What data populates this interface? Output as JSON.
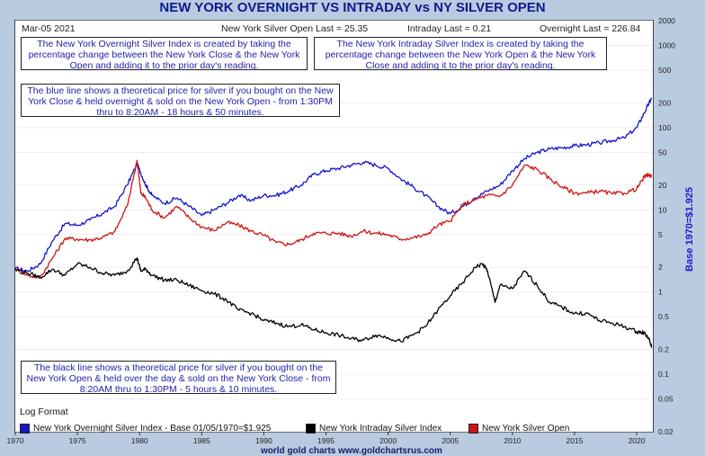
{
  "title": "NEW YORK OVERNIGHT VS INTRADAY vs NY SILVER OPEN",
  "header": {
    "date": "Mar-05  2021",
    "open_last": "New York Silver Open Last = 25.35",
    "intraday_last": "Intraday Last = 0.21",
    "overnight_last": "Overnight Last = 226.84"
  },
  "notes": {
    "overnight": "The New York Overnight Silver Index is created by taking the percentage change between the New York Close & the New York Open and adding it to the prior day's reading.",
    "intraday": "The New York Intraday Silver Index is created by taking the percentage change between the New York Open & the New York Close and adding it to the prior day's reading.",
    "blue_line": "The blue line shows a theoretical price for silver if you bought on the New York Close & held overnight & sold on the New York Open - from 1:30PM thru to 8:20AM - 18 hours & 50 minutes.",
    "black_line": "The black line shows a theoretical price for silver if you bought on the New York Open & held over the day & sold on the New York Close - from 8:20AM thru to 1:30PM - 5 hours & 10 minutes."
  },
  "log_format": "Log Format",
  "right_axis_label": "Base 1970=$1.925",
  "footer": "world gold charts www.goldchartsrus.com",
  "legend": [
    {
      "label": "New York Overnight Silver Index - Base 01/05/1970=$1.925",
      "color": "#1515c8"
    },
    {
      "label": "New York Intraday Silver Index",
      "color": "#000000"
    },
    {
      "label": "New York Silver Open",
      "color": "#d01515"
    }
  ],
  "chart_data": {
    "type": "line",
    "y_scale": "log",
    "xlim": [
      1970,
      2021.3
    ],
    "ylim": [
      0.02,
      2000
    ],
    "x_ticks": [
      "1970",
      "1975",
      "1980",
      "1985",
      "1990",
      "1995",
      "2000",
      "2005",
      "2010",
      "2015",
      "2020"
    ],
    "y_ticks": [
      "2000",
      "1000",
      "500",
      "200",
      "100",
      "50",
      "20",
      "10",
      "5",
      "2",
      "1",
      "0.5",
      "0.2",
      "0.1",
      "0.05",
      "0.02"
    ],
    "series": [
      {
        "name": "New York Overnight Silver Index - Base 01/05/1970=$1.925",
        "color": "#1515c8",
        "x": [
          1970,
          1971,
          1972,
          1973,
          1974,
          1975,
          1976,
          1977,
          1978,
          1979,
          1979.8,
          1980.1,
          1980.5,
          1981,
          1982,
          1983,
          1984,
          1985,
          1986,
          1987,
          1988,
          1989,
          1990,
          1991,
          1992,
          1993,
          1994,
          1995,
          1996,
          1997,
          1998,
          1999,
          2000,
          2001,
          2002,
          2003,
          2004,
          2005,
          2006,
          2007,
          2008,
          2009,
          2010,
          2011,
          2012,
          2013,
          2014,
          2015,
          2016,
          2017,
          2018,
          2019,
          2020,
          2020.6,
          2021,
          2021.2
        ],
        "y": [
          1.93,
          1.8,
          2.2,
          4.2,
          6.8,
          6.5,
          7.5,
          9,
          11,
          20,
          36,
          28,
          20,
          15,
          12,
          14,
          11,
          8.5,
          10,
          12,
          15,
          13,
          15,
          15,
          17,
          20,
          27,
          30,
          32,
          35,
          38,
          35,
          32,
          24,
          19,
          15,
          11,
          9,
          11,
          14,
          17,
          20,
          30,
          42,
          50,
          55,
          57,
          60,
          62,
          65,
          70,
          75,
          100,
          150,
          200,
          227
        ]
      },
      {
        "name": "New York Silver Open",
        "color": "#d01515",
        "x": [
          1970,
          1971,
          1972,
          1973,
          1974,
          1975,
          1976,
          1977,
          1978,
          1979,
          1979.8,
          1980.1,
          1980.5,
          1981,
          1982,
          1983,
          1984,
          1985,
          1986,
          1987,
          1988,
          1989,
          1990,
          1991,
          1992,
          1993,
          1994,
          1995,
          1996,
          1997,
          1998,
          1999,
          2000,
          2001,
          2002,
          2003,
          2004,
          2005,
          2006,
          2007,
          2008,
          2009,
          2010,
          2011,
          2012,
          2013,
          2014,
          2015,
          2016,
          2017,
          2018,
          2019,
          2020,
          2020.6,
          2021,
          2021.2
        ],
        "y": [
          1.9,
          1.6,
          1.5,
          2.6,
          4.5,
          4.4,
          4.3,
          4.6,
          5.4,
          11,
          40,
          16,
          14,
          10,
          8,
          11,
          8,
          6.2,
          5.6,
          7,
          6.5,
          5.5,
          4.9,
          4,
          3.8,
          4.3,
          5.2,
          5.2,
          5.2,
          4.8,
          5.5,
          5.2,
          5,
          4.4,
          4.6,
          4.9,
          6.5,
          7.3,
          11.5,
          13.4,
          15,
          14.7,
          20,
          35,
          31,
          24,
          19,
          16,
          16,
          17,
          15.7,
          16,
          18,
          25,
          27,
          25.35
        ]
      },
      {
        "name": "New York Intraday Silver Index",
        "color": "#000000",
        "x": [
          1970,
          1971,
          1972,
          1973,
          1974,
          1975,
          1976,
          1977,
          1978,
          1979,
          1979.8,
          1980.1,
          1980.5,
          1981,
          1982,
          1983,
          1984,
          1985,
          1986,
          1987,
          1988,
          1989,
          1990,
          1991,
          1992,
          1993,
          1994,
          1995,
          1996,
          1997,
          1998,
          1999,
          2000,
          2001,
          2002,
          2003,
          2004,
          2005,
          2006,
          2007,
          2007.6,
          2008,
          2008.6,
          2009,
          2010,
          2011,
          2012,
          2013,
          2014,
          2015,
          2016,
          2017,
          2018,
          2019,
          2020,
          2020.6,
          2021,
          2021.2
        ],
        "y": [
          1.9,
          1.7,
          1.5,
          1.9,
          1.6,
          2.2,
          2.0,
          1.7,
          1.6,
          1.8,
          2.6,
          1.8,
          1.9,
          1.6,
          1.4,
          1.4,
          1.2,
          1.05,
          0.95,
          0.8,
          0.6,
          0.55,
          0.45,
          0.42,
          0.38,
          0.4,
          0.35,
          0.32,
          0.3,
          0.27,
          0.26,
          0.3,
          0.28,
          0.25,
          0.3,
          0.38,
          0.6,
          0.9,
          1.3,
          2.0,
          2.2,
          1.8,
          0.75,
          1.2,
          1.1,
          1.8,
          1.2,
          0.75,
          0.65,
          0.55,
          0.55,
          0.45,
          0.42,
          0.38,
          0.33,
          0.32,
          0.27,
          0.21
        ]
      }
    ]
  }
}
